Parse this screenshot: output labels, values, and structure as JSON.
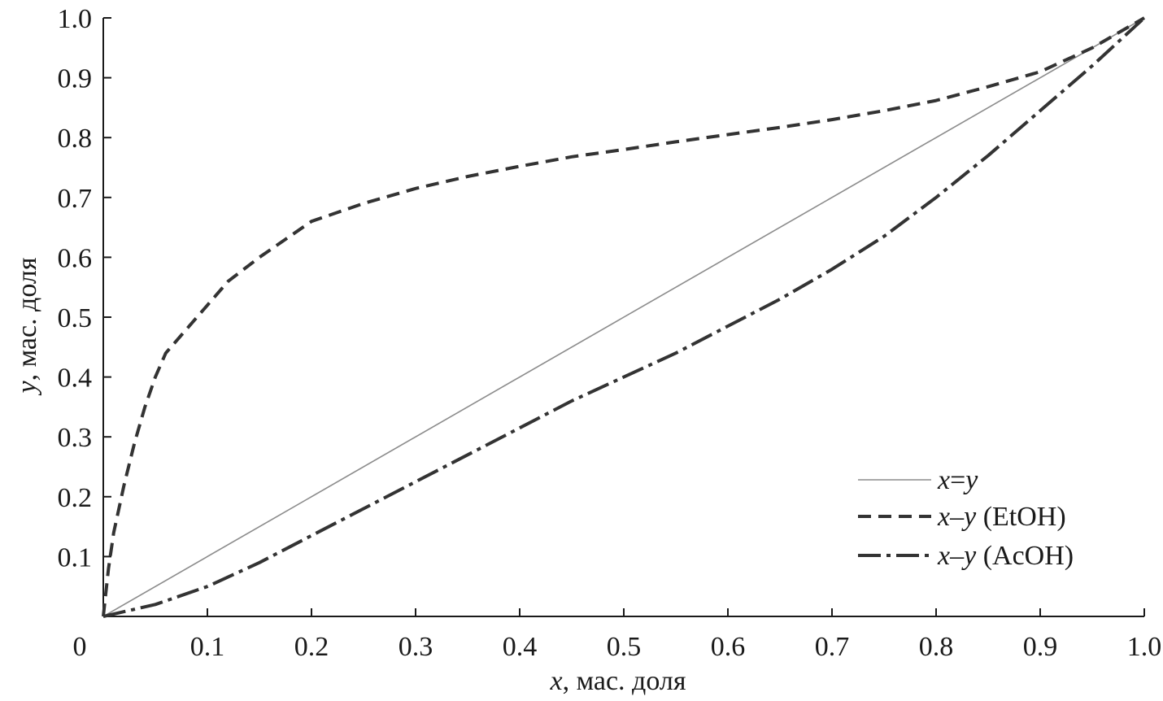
{
  "chart_data": {
    "type": "line",
    "xlabel_var": "x",
    "xlabel_rest": ", мас. доля",
    "ylabel_var": "y",
    "ylabel_rest": ", мас. доля",
    "xlim": [
      0,
      1.0
    ],
    "ylim": [
      0,
      1.0
    ],
    "x_ticks": [
      0,
      0.1,
      0.2,
      0.3,
      0.4,
      0.5,
      0.6,
      0.7,
      0.8,
      0.9,
      1.0
    ],
    "x_tick_labels": [
      "0",
      "0.1",
      "0.2",
      "0.3",
      "0.4",
      "0.5",
      "0.6",
      "0.7",
      "0.8",
      "0.9",
      "1.0"
    ],
    "y_ticks": [
      0.1,
      0.2,
      0.3,
      0.4,
      0.5,
      0.6,
      0.7,
      0.8,
      0.9,
      1.0
    ],
    "y_tick_labels": [
      "0.1",
      "0.2",
      "0.3",
      "0.4",
      "0.5",
      "0.6",
      "0.7",
      "0.8",
      "0.9",
      "1.0"
    ],
    "grid": false,
    "legend_position": "bottom-right",
    "series": [
      {
        "id": "diagonal",
        "legend_var1": "x",
        "legend_sep": "=",
        "legend_var2": "y",
        "legend_suffix": "",
        "style": "solid",
        "color": "#8c8c8c",
        "x": [
          0,
          1.0
        ],
        "y": [
          0,
          1.0
        ]
      },
      {
        "id": "etoh",
        "legend_var1": "x",
        "legend_sep": "–",
        "legend_var2": "y",
        "legend_suffix": " (EtOH)",
        "style": "dashed",
        "color": "#333333",
        "x": [
          0,
          0.005,
          0.01,
          0.02,
          0.03,
          0.04,
          0.05,
          0.06,
          0.08,
          0.1,
          0.12,
          0.15,
          0.2,
          0.25,
          0.3,
          0.35,
          0.4,
          0.45,
          0.5,
          0.55,
          0.6,
          0.65,
          0.7,
          0.75,
          0.8,
          0.85,
          0.9,
          0.95,
          1.0
        ],
        "y": [
          0,
          0.08,
          0.14,
          0.22,
          0.29,
          0.35,
          0.4,
          0.44,
          0.48,
          0.52,
          0.56,
          0.6,
          0.66,
          0.69,
          0.715,
          0.735,
          0.752,
          0.768,
          0.78,
          0.793,
          0.805,
          0.817,
          0.83,
          0.845,
          0.862,
          0.885,
          0.91,
          0.95,
          1.0
        ]
      },
      {
        "id": "acoh",
        "legend_var1": "x",
        "legend_sep": "–",
        "legend_var2": "y",
        "legend_suffix": " (AcOH)",
        "style": "dashdot",
        "color": "#333333",
        "x": [
          0,
          0.05,
          0.1,
          0.15,
          0.2,
          0.25,
          0.3,
          0.35,
          0.4,
          0.45,
          0.5,
          0.55,
          0.6,
          0.65,
          0.7,
          0.75,
          0.8,
          0.85,
          0.9,
          0.95,
          1.0
        ],
        "y": [
          0,
          0.02,
          0.05,
          0.09,
          0.135,
          0.18,
          0.225,
          0.27,
          0.315,
          0.36,
          0.4,
          0.44,
          0.485,
          0.53,
          0.58,
          0.635,
          0.7,
          0.77,
          0.845,
          0.92,
          1.0
        ]
      }
    ]
  }
}
